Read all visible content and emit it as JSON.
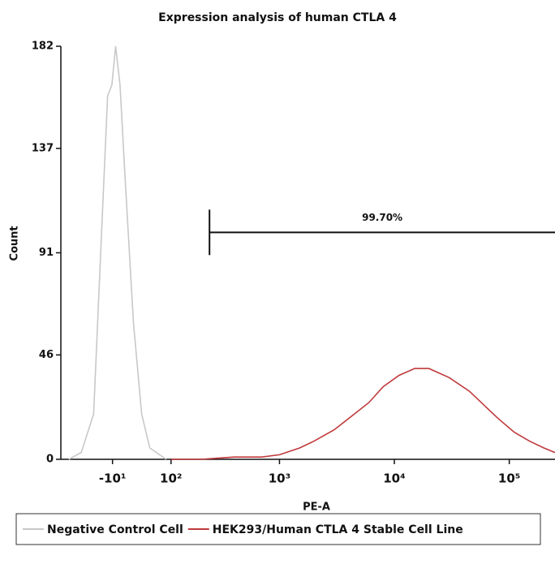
{
  "chart_data": {
    "type": "line",
    "title": "Expression analysis of human CTLA 4",
    "xlabel": "PE-A",
    "ylabel": "Count",
    "xscale": "biexponential",
    "xlim": [
      -115,
      250000
    ],
    "xticks": [
      {
        "value": -10,
        "label": "-10¹"
      },
      {
        "value": 100,
        "label": "10²"
      },
      {
        "value": 1000,
        "label": "10³"
      },
      {
        "value": 10000,
        "label": "10⁴"
      },
      {
        "value": 100000,
        "label": "10⁵"
      }
    ],
    "ylim": [
      0,
      182
    ],
    "yticks": [
      0,
      46,
      91,
      137,
      182
    ],
    "series": [
      {
        "name": "Negative Control Cell",
        "color": "#c8c8c8",
        "x": [
          -94,
          -66,
          -42,
          -28,
          -18,
          -11,
          -5,
          2,
          11,
          24,
          38,
          53,
          88
        ],
        "values": [
          0,
          3,
          20,
          100,
          160,
          165,
          182,
          165,
          120,
          60,
          20,
          5,
          0
        ]
      },
      {
        "name": "HEK293/Human CTLA 4 Stable Cell Line",
        "color": "#c0393b",
        "x": [
          100,
          200,
          400,
          700,
          1000,
          1500,
          2000,
          3000,
          4000,
          6000,
          8000,
          11000,
          15000,
          20000,
          30000,
          45000,
          60000,
          80000,
          110000,
          150000,
          200000,
          250000
        ],
        "values": [
          0,
          0,
          1,
          1,
          2,
          5,
          8,
          13,
          18,
          25,
          32,
          37,
          40,
          40,
          36,
          30,
          24,
          18,
          12,
          8,
          5,
          3
        ]
      }
    ],
    "annotations": [
      {
        "text": "99.70%",
        "x": [
          240,
          250000
        ],
        "y": 100
      }
    ],
    "legend": "bottom"
  }
}
